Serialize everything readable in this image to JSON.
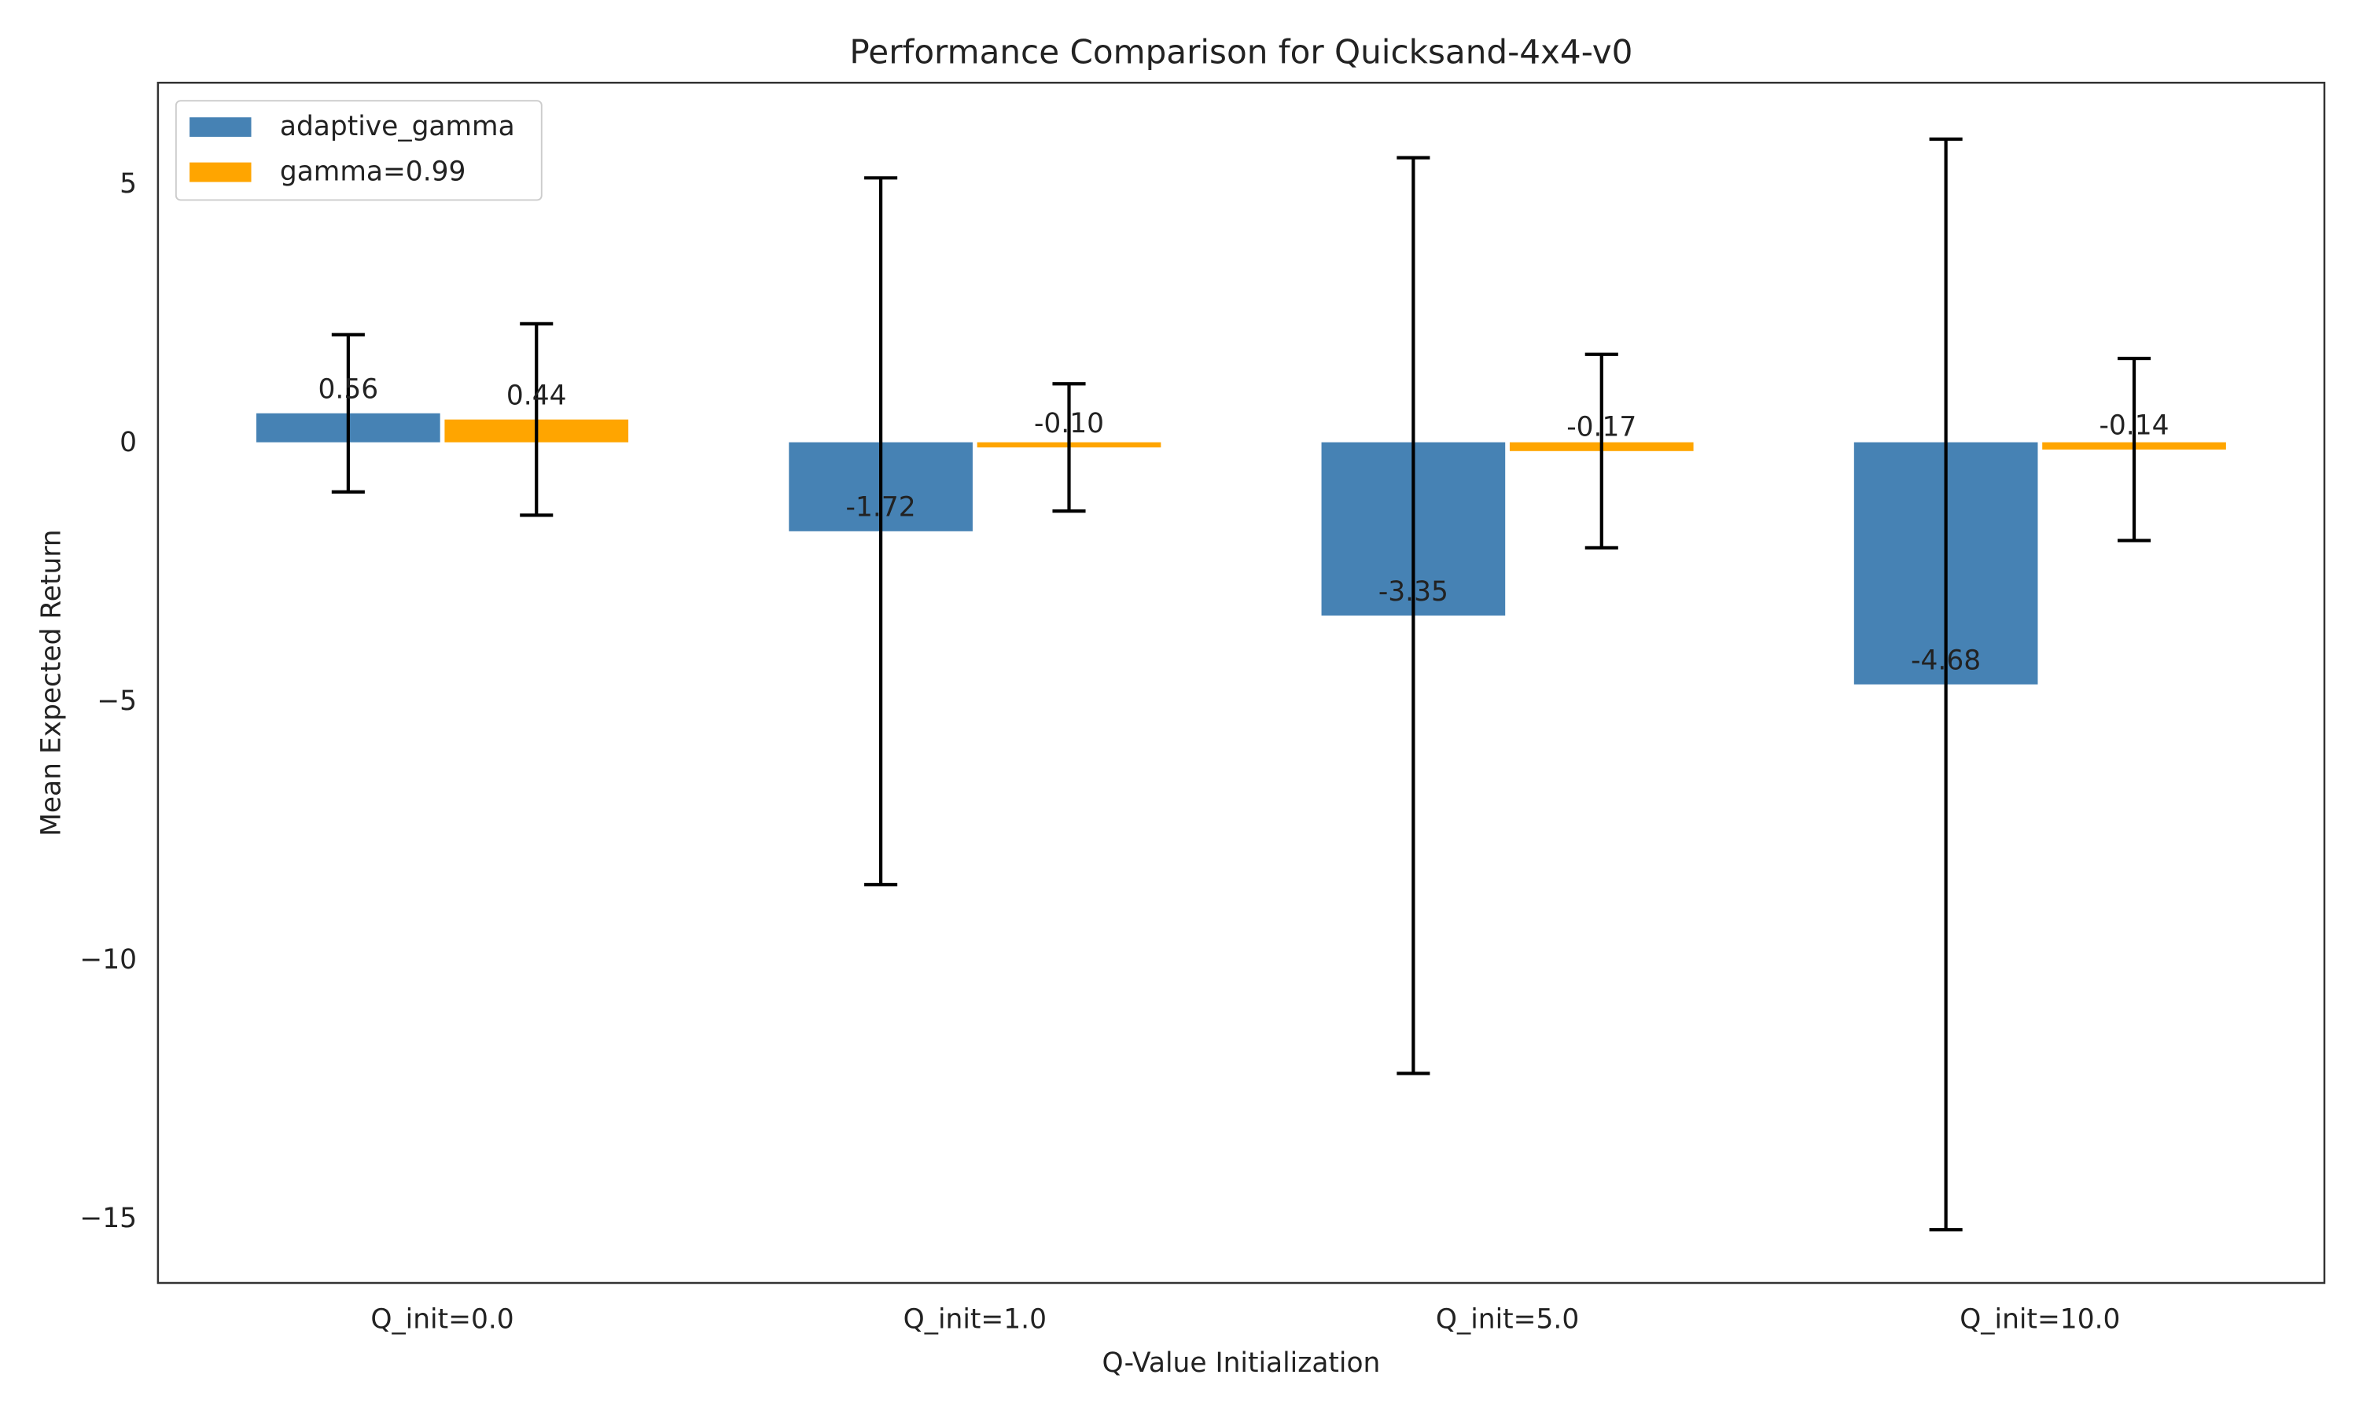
{
  "chart_data": {
    "type": "bar",
    "title": "Performance Comparison for Quicksand-4x4-v0",
    "xlabel": "Q-Value Initialization",
    "ylabel": "Mean Expected Return",
    "categories": [
      "Q_init=0.0",
      "Q_init=1.0",
      "Q_init=5.0",
      "Q_init=10.0"
    ],
    "series": [
      {
        "name": "adaptive_gamma",
        "color": "#4682b4",
        "values": [
          0.56,
          -1.72,
          -3.35,
          -4.68
        ],
        "value_labels": [
          "0.56",
          "-1.72",
          "-3.35",
          "-4.68"
        ],
        "errors": [
          1.52,
          6.83,
          8.85,
          10.54
        ]
      },
      {
        "name": "gamma=0.99",
        "color": "#ffa500",
        "values": [
          0.44,
          -0.1,
          -0.17,
          -0.14
        ],
        "value_labels": [
          "0.44",
          "-0.10",
          "-0.17",
          "-0.14"
        ],
        "errors": [
          1.85,
          1.23,
          1.87,
          1.76
        ]
      }
    ],
    "ylim": [
      -16.25,
      6.95
    ],
    "yticks": [
      {
        "value": -15,
        "label": "−15"
      },
      {
        "value": -10,
        "label": "−10"
      },
      {
        "value": -5,
        "label": "−5"
      },
      0,
      5
    ],
    "grid": false,
    "legend": "upper left"
  }
}
